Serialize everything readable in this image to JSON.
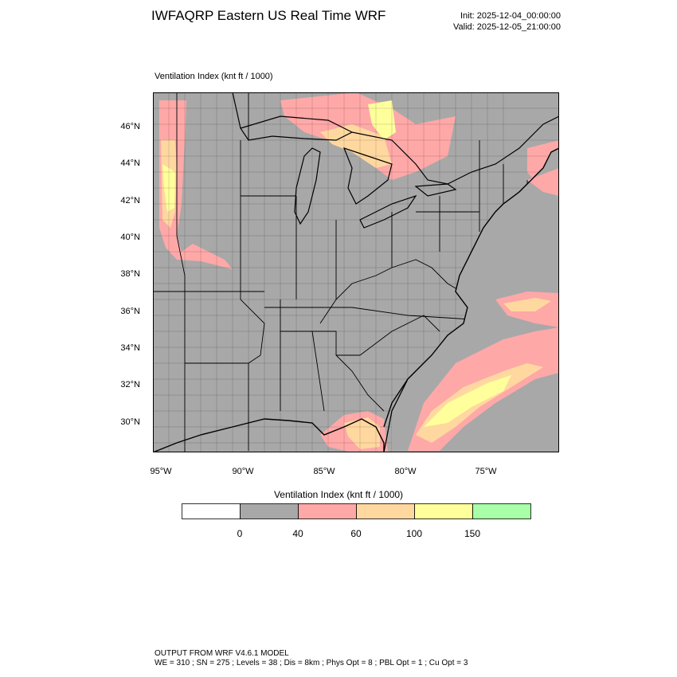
{
  "header": {
    "title": "IWFAQRP Eastern US Real Time WRF",
    "init": "Init: 2025-12-04_00:00:00",
    "valid": "Valid: 2025-12-05_21:00:00"
  },
  "map": {
    "field_label": "Ventilation Index   (knt ft / 1000)",
    "lat_labels": [
      "46°N",
      "44°N",
      "42°N",
      "40°N",
      "38°N",
      "36°N",
      "34°N",
      "32°N",
      "30°N"
    ],
    "lon_labels": [
      "95°W",
      "90°W",
      "85°W",
      "80°W",
      "75°W"
    ],
    "background_color": "#a8a8a8",
    "boundary_color": "#000000"
  },
  "colorbar": {
    "title": "Ventilation Index  (knt ft / 1000)",
    "colors": [
      "#ffffff",
      "#a8a8a8",
      "#ffa8a8",
      "#ffd8a0",
      "#ffff9c",
      "#a8ffa8"
    ],
    "labels": [
      "0",
      "40",
      "60",
      "100",
      "150"
    ]
  },
  "footer": {
    "line1": "OUTPUT FROM WRF V4.6.1 MODEL",
    "line2": "WE = 310 ; SN = 275 ; Levels = 38 ; Dis = 8km ; Phys Opt = 8 ; PBL Opt = 1 ; Cu Opt = 3"
  }
}
